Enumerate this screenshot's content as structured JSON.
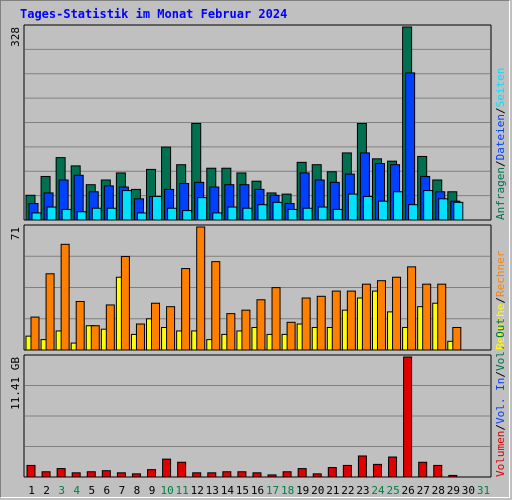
{
  "title": "Tages-Statistik im Monat Februar 2024",
  "colors": {
    "background": "#c0c0c0",
    "hits": "#007050",
    "files": "#0040ff",
    "pages": "#00e0ff",
    "visits": "#ffff00",
    "sites": "#ff8000",
    "kbytes": "#e00000",
    "weekend_day_label": "#008040",
    "weekday_label": "#000000"
  },
  "chart_data": [
    {
      "type": "bar",
      "panel": "top",
      "y_tick_label": "328",
      "ylim": [
        0,
        328
      ],
      "right_legend": [
        {
          "text": "Anfragen",
          "color": "#007050"
        },
        {
          "text": "Dateien",
          "color": "#0040ff"
        },
        {
          "text": "Seiten",
          "color": "#00e0ff"
        }
      ],
      "categories": [
        "1",
        "2",
        "3",
        "4",
        "5",
        "6",
        "7",
        "8",
        "9",
        "10",
        "11",
        "12",
        "13",
        "14",
        "15",
        "16",
        "17",
        "18",
        "19",
        "20",
        "21",
        "22",
        "23",
        "24",
        "25",
        "26",
        "27",
        "28",
        "29"
      ],
      "series": [
        {
          "name": "Anfragen",
          "values": [
            42,
            74,
            106,
            92,
            60,
            68,
            80,
            52,
            86,
            124,
            94,
            164,
            88,
            88,
            80,
            66,
            46,
            44,
            98,
            94,
            82,
            114,
            164,
            104,
            100,
            328,
            108,
            68,
            48
          ]
        },
        {
          "name": "Dateien",
          "values": [
            28,
            46,
            68,
            76,
            48,
            58,
            56,
            36,
            40,
            52,
            62,
            64,
            56,
            60,
            60,
            52,
            42,
            28,
            80,
            68,
            64,
            78,
            114,
            96,
            94,
            250,
            74,
            48,
            32
          ]
        },
        {
          "name": "Seiten",
          "values": [
            12,
            22,
            18,
            14,
            20,
            20,
            50,
            12,
            40,
            20,
            16,
            38,
            12,
            22,
            20,
            26,
            30,
            18,
            20,
            22,
            18,
            44,
            40,
            32,
            48,
            26,
            50,
            36,
            30
          ]
        }
      ]
    },
    {
      "type": "bar",
      "panel": "middle",
      "y_tick_label": "71",
      "ylim": [
        0,
        71
      ],
      "right_legend": [
        {
          "text": "Besuche",
          "color": "#ffff00"
        },
        {
          "text": "Rechner",
          "color": "#ff8000"
        }
      ],
      "categories": [
        "1",
        "2",
        "3",
        "4",
        "5",
        "6",
        "7",
        "8",
        "9",
        "10",
        "11",
        "12",
        "13",
        "14",
        "15",
        "16",
        "17",
        "18",
        "19",
        "20",
        "21",
        "22",
        "23",
        "24",
        "25",
        "26",
        "27",
        "28",
        "29"
      ],
      "series": [
        {
          "name": "Besuche",
          "values": [
            8,
            6,
            11,
            4,
            14,
            12,
            42,
            9,
            18,
            13,
            11,
            11,
            6,
            9,
            11,
            13,
            9,
            9,
            15,
            13,
            13,
            23,
            30,
            34,
            22,
            13,
            25,
            27,
            5
          ]
        },
        {
          "name": "Rechner",
          "values": [
            19,
            44,
            61,
            28,
            14,
            26,
            54,
            15,
            27,
            25,
            47,
            71,
            51,
            21,
            23,
            29,
            36,
            16,
            30,
            31,
            34,
            34,
            38,
            40,
            42,
            48,
            38,
            38,
            13
          ]
        }
      ]
    },
    {
      "type": "bar",
      "panel": "bottom",
      "y_tick_label": "11.41 GB",
      "ylim": [
        0,
        11.41
      ],
      "right_legend": [
        {
          "text": "Volumen",
          "color": "#e00000"
        },
        {
          "text": "Vol. In",
          "color": "#0040ff"
        },
        {
          "text": "Vol. Out",
          "color": "#007050"
        }
      ],
      "categories": [
        "1",
        "2",
        "3",
        "4",
        "5",
        "6",
        "7",
        "8",
        "9",
        "10",
        "11",
        "12",
        "13",
        "14",
        "15",
        "16",
        "17",
        "18",
        "19",
        "20",
        "21",
        "22",
        "23",
        "24",
        "25",
        "26",
        "27",
        "28",
        "29"
      ],
      "series": [
        {
          "name": "Volumen",
          "values": [
            1.1,
            0.5,
            0.8,
            0.4,
            0.5,
            0.6,
            0.4,
            0.3,
            0.7,
            1.7,
            1.4,
            0.4,
            0.4,
            0.5,
            0.5,
            0.4,
            0.2,
            0.5,
            0.8,
            0.3,
            0.9,
            1.1,
            2.0,
            1.2,
            1.9,
            11.41,
            1.4,
            1.1,
            0.15
          ]
        }
      ]
    }
  ],
  "x_labels": [
    {
      "text": "1",
      "weekend": false
    },
    {
      "text": "2",
      "weekend": false
    },
    {
      "text": "3",
      "weekend": true
    },
    {
      "text": "4",
      "weekend": true
    },
    {
      "text": "5",
      "weekend": false
    },
    {
      "text": "6",
      "weekend": false
    },
    {
      "text": "7",
      "weekend": false
    },
    {
      "text": "8",
      "weekend": false
    },
    {
      "text": "9",
      "weekend": false
    },
    {
      "text": "10",
      "weekend": true
    },
    {
      "text": "11",
      "weekend": true
    },
    {
      "text": "12",
      "weekend": false
    },
    {
      "text": "13",
      "weekend": false
    },
    {
      "text": "14",
      "weekend": false
    },
    {
      "text": "15",
      "weekend": false
    },
    {
      "text": "16",
      "weekend": false
    },
    {
      "text": "17",
      "weekend": true
    },
    {
      "text": "18",
      "weekend": true
    },
    {
      "text": "19",
      "weekend": false
    },
    {
      "text": "20",
      "weekend": false
    },
    {
      "text": "21",
      "weekend": false
    },
    {
      "text": "22",
      "weekend": false
    },
    {
      "text": "23",
      "weekend": false
    },
    {
      "text": "24",
      "weekend": true
    },
    {
      "text": "25",
      "weekend": true
    },
    {
      "text": "26",
      "weekend": false
    },
    {
      "text": "27",
      "weekend": false
    },
    {
      "text": "28",
      "weekend": false
    },
    {
      "text": "29",
      "weekend": false
    },
    {
      "text": "30",
      "weekend": false
    },
    {
      "text": "31",
      "weekend": true
    }
  ]
}
